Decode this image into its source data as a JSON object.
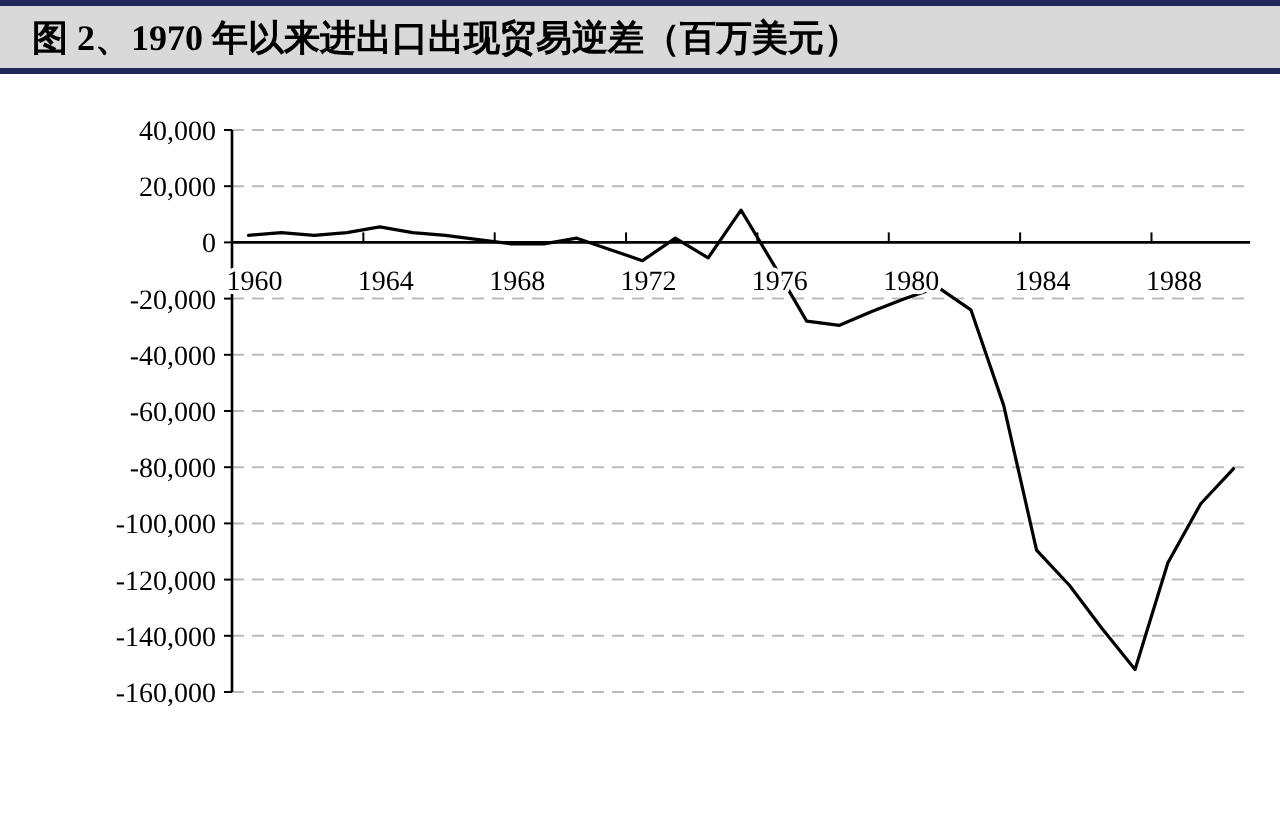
{
  "chart_data": {
    "type": "line",
    "title": "图 2、1970 年以来进出口出现贸易逆差（百万美元）",
    "categories": [
      "1960",
      null,
      null,
      null,
      "1964",
      null,
      null,
      null,
      "1968",
      null,
      null,
      null,
      "1972",
      null,
      null,
      null,
      "1976",
      null,
      null,
      null,
      "1980",
      null,
      null,
      null,
      "1984",
      null,
      null,
      null,
      "1988",
      null,
      null
    ],
    "series": [
      {
        "color": "#000000",
        "values": [
          2500,
          3500,
          2500,
          3500,
          5500,
          3500,
          2500,
          1000,
          -500,
          -500,
          1500,
          -2500,
          -6500,
          1500,
          -5500,
          11500,
          -8000,
          -28000,
          -29500,
          -24500,
          -20000,
          -16000,
          -24000,
          -58000,
          -109500,
          -122000,
          -137500,
          -152000,
          -114000,
          -93000,
          -80500
        ]
      }
    ],
    "ylim": [
      -160000,
      40000
    ],
    "yticks": [
      {
        "value": 40000,
        "label": "40,000"
      },
      {
        "value": 20000,
        "label": "20,000"
      },
      0,
      {
        "value": -20000,
        "label": "-20,000"
      },
      {
        "value": -40000,
        "label": "-40,000"
      },
      {
        "value": -60000,
        "label": "-60,000"
      },
      {
        "value": -80000,
        "label": "-80,000"
      },
      {
        "value": -100000,
        "label": "-100,000"
      },
      {
        "value": -120000,
        "label": "-120,000"
      },
      {
        "value": -140000,
        "label": "-140,000"
      },
      {
        "value": -160000,
        "label": "-160,000"
      }
    ],
    "grid": "y",
    "marker": "none",
    "line_style": "solid"
  }
}
